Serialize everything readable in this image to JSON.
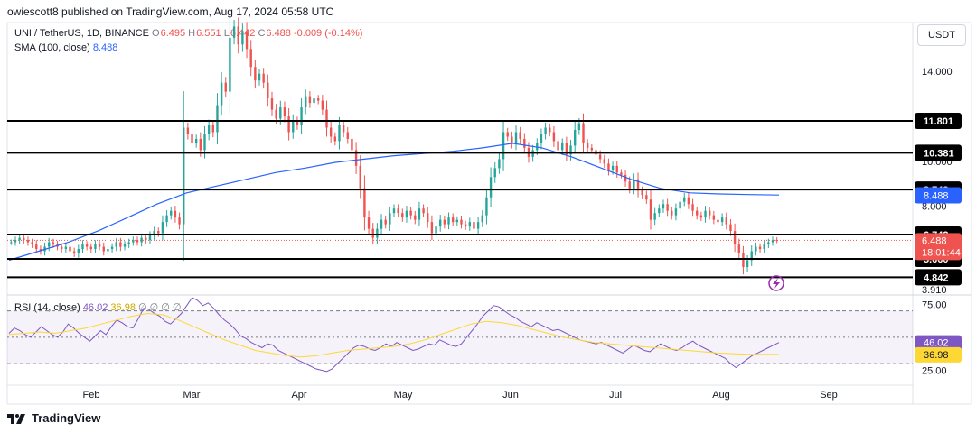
{
  "header": {
    "published": "owiescott8 published on TradingView.com, Aug 17, 2024 05:58 UTC"
  },
  "symbol": {
    "name": "UNI / TetherUS, 1D, BINANCE",
    "o_label": "O",
    "o": "6.495",
    "h_label": "H",
    "h": "6.551",
    "l_label": "L",
    "l": "6.442",
    "c_label": "C",
    "c": "6.488",
    "change": "-0.009 (-0.14%)"
  },
  "sma": {
    "label": "SMA (100, close)",
    "value": "8.488"
  },
  "currency": "USDT",
  "rsi": {
    "label": "RSI (14, close)",
    "value1": "46.02",
    "value2": "36.98",
    "extra": "∅ ∅ ∅ ∅"
  },
  "footer": {
    "brand": "TradingView"
  },
  "colors": {
    "up": "#26a69a",
    "down": "#ef5350",
    "sma": "#2962ff",
    "rsi": "#7e57c2",
    "rsi_ma": "#fdd835"
  },
  "chart_data": {
    "type": "candlestick",
    "title": "UNI / TetherUS, 1D, BINANCE",
    "price_axis": {
      "ticks": [
        "14.000",
        "10.000",
        "8.000"
      ],
      "range": [
        3.91,
        16.5
      ]
    },
    "time_axis": {
      "ticks": [
        "Feb",
        "Mar",
        "Apr",
        "May",
        "Jun",
        "Jul",
        "Aug",
        "Sep"
      ],
      "start": "2024-01-08",
      "last": "2024-08-17"
    },
    "horizontal_levels": [
      11.801,
      10.381,
      8.748,
      6.742,
      5.66,
      4.842
    ],
    "level_labels": [
      "11.801",
      "10.381",
      "8.748",
      "6.742",
      "5.660",
      "4.842",
      "3.910"
    ],
    "current_price": {
      "value": "6.488",
      "countdown": "18:01:44"
    },
    "sma_value_label": "8.488",
    "close_series": [
      6.4,
      6.5,
      6.6,
      6.5,
      6.4,
      6.3,
      6.1,
      6.0,
      6.2,
      6.4,
      6.3,
      6.2,
      6.1,
      6.2,
      6.0,
      5.9,
      6.1,
      6.3,
      6.2,
      6.1,
      6.3,
      6.2,
      6.0,
      6.1,
      6.2,
      6.4,
      6.2,
      6.3,
      6.4,
      6.5,
      6.4,
      6.6,
      6.5,
      6.7,
      6.9,
      6.8,
      7.3,
      7.6,
      7.8,
      7.5,
      7.2,
      11.5,
      11.2,
      10.8,
      11.0,
      10.5,
      11.2,
      11.6,
      11.3,
      12.5,
      13.5,
      13.1,
      15.5,
      16.0,
      15.2,
      15.8,
      15.0,
      14.2,
      13.6,
      13.9,
      13.5,
      12.8,
      12.3,
      11.9,
      12.4,
      12.0,
      11.3,
      11.8,
      11.6,
      12.4,
      12.9,
      12.6,
      12.8,
      12.7,
      12.3,
      11.5,
      11.1,
      10.9,
      11.6,
      11.3,
      11.0,
      10.5,
      9.8,
      8.8,
      7.5,
      7.0,
      6.6,
      7.0,
      7.4,
      7.2,
      7.7,
      7.9,
      7.7,
      7.5,
      7.8,
      7.6,
      7.4,
      7.9,
      7.7,
      7.3,
      6.8,
      7.1,
      7.4,
      7.2,
      7.5,
      7.3,
      7.4,
      7.2,
      7.1,
      7.3,
      7.0,
      7.3,
      7.6,
      8.4,
      9.3,
      9.7,
      10.1,
      11.3,
      11.1,
      10.8,
      11.3,
      11.0,
      10.6,
      10.2,
      10.5,
      10.8,
      11.2,
      11.5,
      11.3,
      10.9,
      10.5,
      10.8,
      10.3,
      10.7,
      11.4,
      11.7,
      10.8,
      10.6,
      10.5,
      10.3,
      10.1,
      9.9,
      9.6,
      9.8,
      9.5,
      9.4,
      9.1,
      8.8,
      9.2,
      8.7,
      8.5,
      8.3,
      7.4,
      7.7,
      7.9,
      8.1,
      7.8,
      7.6,
      7.9,
      8.2,
      8.4,
      8.1,
      7.8,
      7.6,
      7.5,
      7.8,
      7.6,
      7.4,
      7.3,
      7.5,
      7.2,
      6.9,
      6.3,
      5.9,
      5.3,
      5.6,
      6.0,
      6.2,
      6.1,
      6.3,
      6.4,
      6.5,
      6.488
    ],
    "sma_100": [
      5.6,
      6.0,
      6.4,
      6.9,
      7.5,
      8.1,
      8.6,
      8.9,
      9.2,
      9.5,
      9.7,
      9.95,
      10.1,
      10.25,
      10.35,
      10.45,
      10.6,
      10.8,
      10.6,
      10.2,
      9.7,
      9.2,
      8.8,
      8.6,
      8.55,
      8.52,
      8.5
    ],
    "rsi_series": [
      53,
      57,
      55,
      52,
      50,
      54,
      58,
      55,
      52,
      50,
      54,
      60,
      57,
      53,
      50,
      47,
      51,
      55,
      52,
      58,
      63,
      61,
      58,
      57,
      64,
      72,
      71,
      68,
      66,
      62,
      60,
      64,
      68,
      74,
      80,
      78,
      74,
      76,
      72,
      67,
      63,
      60,
      56,
      51,
      49,
      46,
      44,
      42,
      45,
      44,
      40,
      38,
      36,
      34,
      32,
      30,
      28,
      26,
      25,
      24,
      26,
      30,
      34,
      38,
      42,
      44,
      43,
      41,
      40,
      42,
      45,
      43,
      46,
      44,
      42,
      40,
      41,
      43,
      45,
      44,
      48,
      46,
      44,
      43,
      45,
      50,
      55,
      60,
      66,
      70,
      74,
      73,
      70,
      67,
      65,
      62,
      60,
      58,
      61,
      59,
      57,
      55,
      56,
      54,
      52,
      50,
      48,
      47,
      46,
      45,
      46,
      44,
      42,
      40,
      38,
      41,
      44,
      42,
      40,
      39,
      42,
      45,
      43,
      41,
      40,
      42,
      45,
      47,
      44,
      42,
      40,
      38,
      36,
      34,
      30,
      27,
      30,
      33,
      36,
      38,
      40,
      42,
      44,
      46.02
    ],
    "rsi_ma": [
      52,
      53,
      54,
      53,
      55,
      57,
      60,
      63,
      66,
      68,
      67,
      63,
      58,
      53,
      48,
      44,
      40,
      38,
      36,
      35,
      36,
      38,
      40,
      41,
      42,
      43,
      45,
      48,
      52,
      56,
      60,
      62,
      61,
      59,
      56,
      53,
      50,
      48,
      46,
      45,
      44,
      43,
      42,
      41,
      40,
      39,
      38,
      37.5,
      37,
      37,
      36.98
    ],
    "rsi_levels": [
      70,
      50,
      30
    ],
    "rsi_axis_ticks": [
      "75.00",
      "25.00"
    ],
    "rsi_value_labels": [
      "46.02",
      "36.98"
    ]
  }
}
